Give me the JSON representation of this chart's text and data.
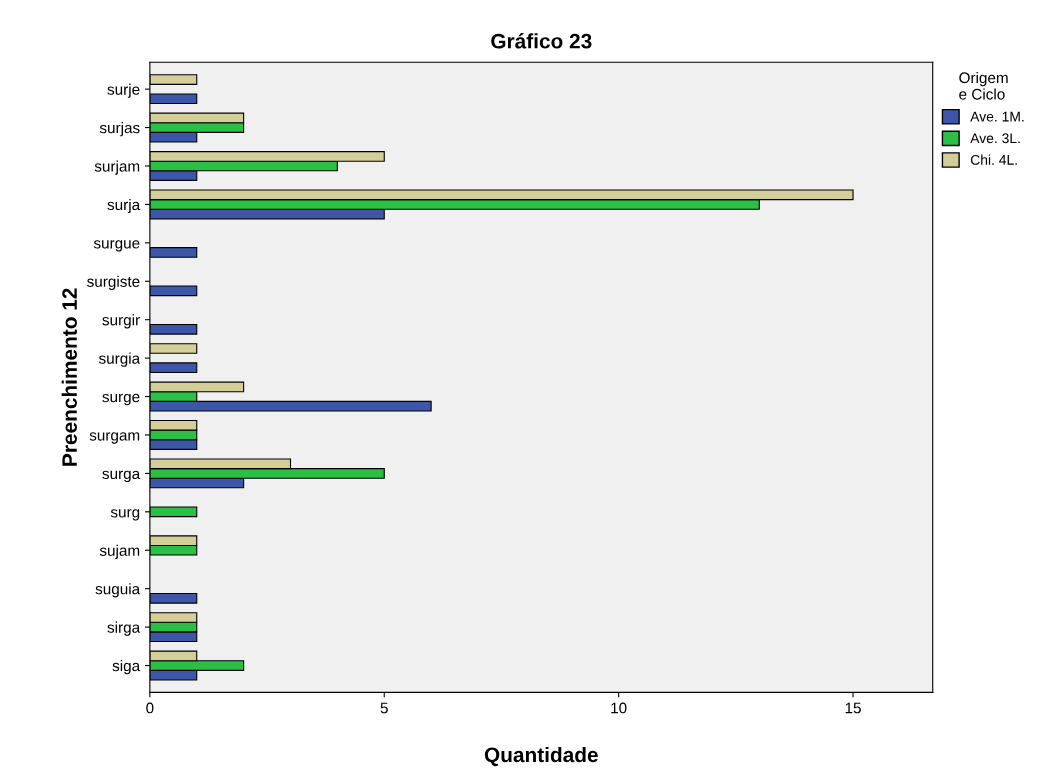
{
  "chart_data": {
    "type": "bar",
    "orientation": "horizontal",
    "title": "Gráfico 23",
    "xlabel": "Quantidade",
    "ylabel": "Preenchimento 12",
    "legend_title": "Origem\ne Ciclo",
    "legend": "top right",
    "categories": [
      "surje",
      "surjas",
      "surjam",
      "surja",
      "surgue",
      "surgiste",
      "surgir",
      "surgia",
      "surge",
      "surgam",
      "surga",
      "surg",
      "sujam",
      "suguia",
      "sirga",
      "siga"
    ],
    "series": [
      {
        "name": "Ave. 1M.",
        "color": "#3d56a8",
        "values": [
          1,
          1,
          1,
          5,
          1,
          1,
          1,
          1,
          6,
          1,
          2,
          null,
          null,
          1,
          1,
          1
        ]
      },
      {
        "name": "Ave. 3L.",
        "color": "#2bbf45",
        "values": [
          null,
          2,
          4,
          13,
          null,
          null,
          null,
          null,
          1,
          1,
          5,
          1,
          1,
          null,
          1,
          2
        ]
      },
      {
        "name": "Chi. 4L.",
        "color": "#d4cf99",
        "values": [
          1,
          2,
          5,
          15,
          null,
          null,
          null,
          1,
          2,
          1,
          3,
          null,
          1,
          null,
          1,
          1
        ]
      }
    ],
    "xlim": [
      0,
      16.7
    ],
    "xticks": [
      0,
      5,
      10,
      15
    ],
    "grid": false
  }
}
